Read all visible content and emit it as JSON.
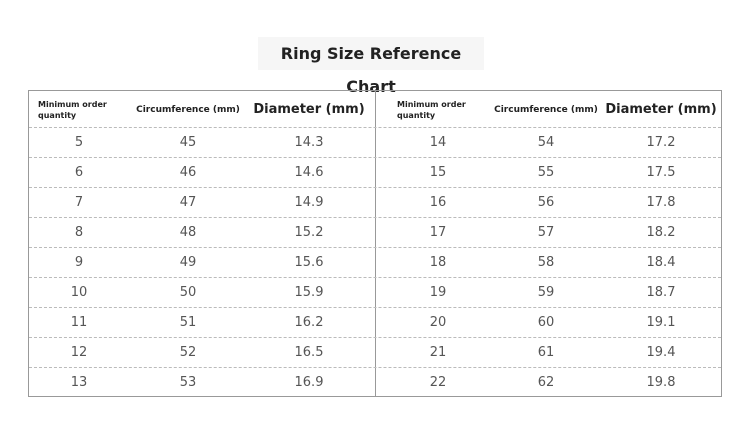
{
  "title": "Ring Size Reference Chart",
  "table": {
    "headers": [
      "Minimum order quantity",
      "Circumference (mm)",
      "Diameter (mm)",
      "Minimum order quantity",
      "Circumference (mm)",
      "Diameter (mm)"
    ],
    "rows": [
      [
        5,
        45,
        14.3,
        14,
        54,
        17.2
      ],
      [
        6,
        46,
        14.6,
        15,
        55,
        17.5
      ],
      [
        7,
        47,
        14.9,
        16,
        56,
        17.8
      ],
      [
        8,
        48,
        15.2,
        17,
        57,
        18.2
      ],
      [
        9,
        49,
        15.6,
        18,
        58,
        18.4
      ],
      [
        10,
        50,
        15.9,
        19,
        59,
        18.7
      ],
      [
        11,
        51,
        16.2,
        20,
        60,
        19.1
      ],
      [
        12,
        52,
        16.5,
        21,
        61,
        19.4
      ],
      [
        13,
        53,
        16.9,
        22,
        62,
        19.8
      ]
    ]
  }
}
